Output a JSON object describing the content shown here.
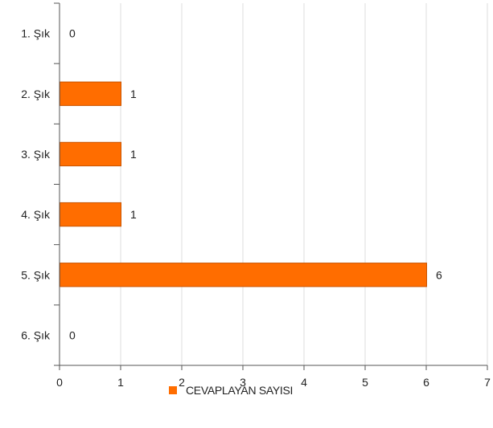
{
  "chart_data": {
    "type": "bar",
    "orientation": "horizontal",
    "categories": [
      "1. Şık",
      "2. Şık",
      "3. Şık",
      "4. Şık",
      "5. Şık",
      "6. Şık"
    ],
    "series": [
      {
        "name": "CEVAPLAYAN SAYISI",
        "values": [
          0,
          1,
          1,
          1,
          6,
          0
        ],
        "color": "#ff6d00"
      }
    ],
    "x_ticks": [
      "0",
      "1",
      "2",
      "3",
      "4",
      "5",
      "6",
      "7"
    ],
    "xlim": [
      0,
      7
    ],
    "grid": true,
    "data_labels": true,
    "legend_position": "bottom"
  }
}
